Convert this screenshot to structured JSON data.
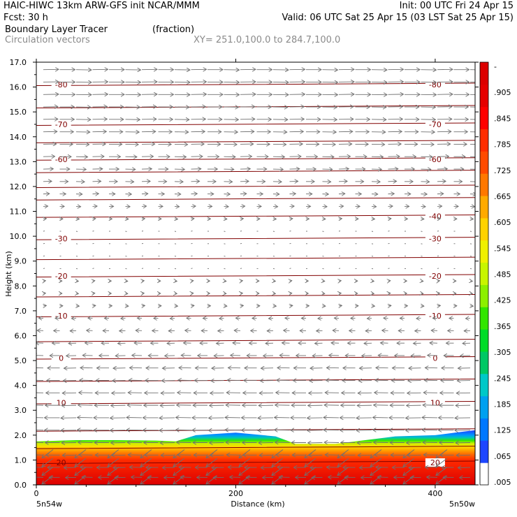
{
  "header": {
    "line1_left": "HAIC-HIWC 13km ARW-GFS init    NCAR/MMM",
    "line1_right": "Init: 00 UTC Fri 24 Apr 15",
    "line2_left": "Fcst:    30 h",
    "line2_right": "Valid: 06 UTC Sat 25 Apr 15 (03 LST Sat 25 Apr 15)",
    "line3_left": "Boundary Layer Tracer",
    "line3_mid": "(fraction)",
    "line4_left": "Circulation vectors",
    "line4_mid": "XY= 251.0,100.0 to 284.7,100.0"
  },
  "axes": {
    "ylabel": "Height (km)",
    "xlabel": "Distance (km)",
    "x_left_end": "5n54w",
    "x_right_end": "5n50w"
  },
  "colors": {
    "contour": "#800000",
    "vector": "#707070",
    "frame": "#000000"
  },
  "chart_data": {
    "type": "heatmap",
    "title": "Boundary Layer Tracer",
    "subtitle": "(fraction)",
    "xlabel": "Distance (km)",
    "ylabel": "Height (km)",
    "xlim": [
      0,
      440
    ],
    "ylim": [
      0,
      17
    ],
    "xticks": [
      0,
      200,
      400
    ],
    "yticks": [
      0.0,
      1.0,
      2.0,
      3.0,
      4.0,
      5.0,
      6.0,
      7.0,
      8.0,
      9.0,
      10.0,
      11.0,
      12.0,
      13.0,
      14.0,
      15.0,
      16.0,
      17.0
    ],
    "tracer_field": {
      "colorbar_levels": [
        ".005",
        ".065",
        ".125",
        ".185",
        ".245",
        ".305",
        ".365",
        ".425",
        ".485",
        ".545",
        ".605",
        ".665",
        ".725",
        ".785",
        ".845",
        ".905",
        "-"
      ],
      "colorbar_colors": [
        "#ffffff",
        "#1e46ff",
        "#0078ff",
        "#00a0f0",
        "#00c8c8",
        "#00c864",
        "#00dc28",
        "#32e600",
        "#8cf000",
        "#c8f500",
        "#f0f000",
        "#ffd200",
        "#ffaa00",
        "#ff7800",
        "#ff4b00",
        "#ff2d00",
        "#ff0000",
        "#e60000",
        "#dc0000"
      ],
      "boundary_layer_top_km": {
        "x": [
          0,
          40,
          80,
          120,
          140,
          160,
          200,
          240,
          260,
          300,
          320,
          360,
          400,
          420,
          440
        ],
        "top": [
          1.75,
          1.8,
          1.8,
          1.78,
          1.75,
          2.0,
          2.1,
          1.95,
          1.65,
          1.65,
          1.75,
          1.95,
          2.0,
          2.1,
          2.2
        ]
      }
    },
    "temperature_contours_C": [
      {
        "value": 20,
        "height_km": 0.9,
        "labels": [
          "20",
          "20"
        ]
      },
      {
        "value": 10,
        "height_km": 3.3,
        "labels": [
          "10",
          "10"
        ]
      },
      {
        "value": 0,
        "height_km": 5.1,
        "labels": [
          "0",
          "0"
        ]
      },
      {
        "value": -10,
        "height_km": 6.8,
        "labels": [
          "-10",
          "-10"
        ]
      },
      {
        "value": -20,
        "height_km": 8.4,
        "labels": [
          "-20",
          "-20"
        ]
      },
      {
        "value": -30,
        "height_km": 9.9,
        "labels": [
          "-30",
          "-30"
        ]
      },
      {
        "value": -40,
        "height_km": 10.8,
        "labels": [
          "",
          "-40"
        ]
      },
      {
        "value": -60,
        "height_km": 13.1,
        "labels": [
          "-60",
          "-60"
        ]
      },
      {
        "value": -70,
        "height_km": 14.5,
        "labels": [
          "-70",
          "-70"
        ]
      },
      {
        "value": -80,
        "height_km": 16.1,
        "labels": [
          "-80",
          "-80"
        ]
      }
    ],
    "unlabeled_contour_heights_km": [
      1.5,
      2.2,
      4.2,
      5.8,
      7.6,
      9.1,
      11.5,
      12.0,
      12.6,
      13.8,
      15.2
    ],
    "circulation_vectors": {
      "description_profile": [
        {
          "z": 16.7,
          "u": 1.0
        },
        {
          "z": 16.2,
          "u": 1.0
        },
        {
          "z": 15.7,
          "u": 1.0
        },
        {
          "z": 15.2,
          "u": 0.95
        },
        {
          "z": 14.7,
          "u": 0.95
        },
        {
          "z": 14.2,
          "u": 0.9
        },
        {
          "z": 13.7,
          "u": 0.85
        },
        {
          "z": 13.2,
          "u": 0.75
        },
        {
          "z": 12.7,
          "u": 0.65
        },
        {
          "z": 12.2,
          "u": 0.55
        },
        {
          "z": 11.7,
          "u": 0.4
        },
        {
          "z": 11.2,
          "u": 0.3
        },
        {
          "z": 10.7,
          "u": 0.2
        },
        {
          "z": 10.2,
          "u": 0.1
        },
        {
          "z": 9.7,
          "u": 0.05
        },
        {
          "z": 9.2,
          "u": 0.05
        },
        {
          "z": 8.7,
          "u": 0.1
        },
        {
          "z": 8.2,
          "u": 0.15
        },
        {
          "z": 7.7,
          "u": 0.15
        },
        {
          "z": 7.2,
          "u": 0.2
        },
        {
          "z": 6.7,
          "u": -0.3
        },
        {
          "z": 6.2,
          "u": -0.4
        },
        {
          "z": 5.7,
          "u": -0.5
        },
        {
          "z": 5.2,
          "u": -0.65
        },
        {
          "z": 4.7,
          "u": -0.8
        },
        {
          "z": 4.2,
          "u": -0.85
        },
        {
          "z": 3.7,
          "u": -0.9
        },
        {
          "z": 3.2,
          "u": -0.95
        },
        {
          "z": 2.7,
          "u": -1.0
        },
        {
          "z": 2.2,
          "u": -1.0
        },
        {
          "z": 1.7,
          "u": -0.95
        },
        {
          "z": 1.2,
          "u": -0.9
        },
        {
          "z": 0.7,
          "u": -0.8
        },
        {
          "z": 0.3,
          "u": -0.7
        }
      ]
    }
  }
}
